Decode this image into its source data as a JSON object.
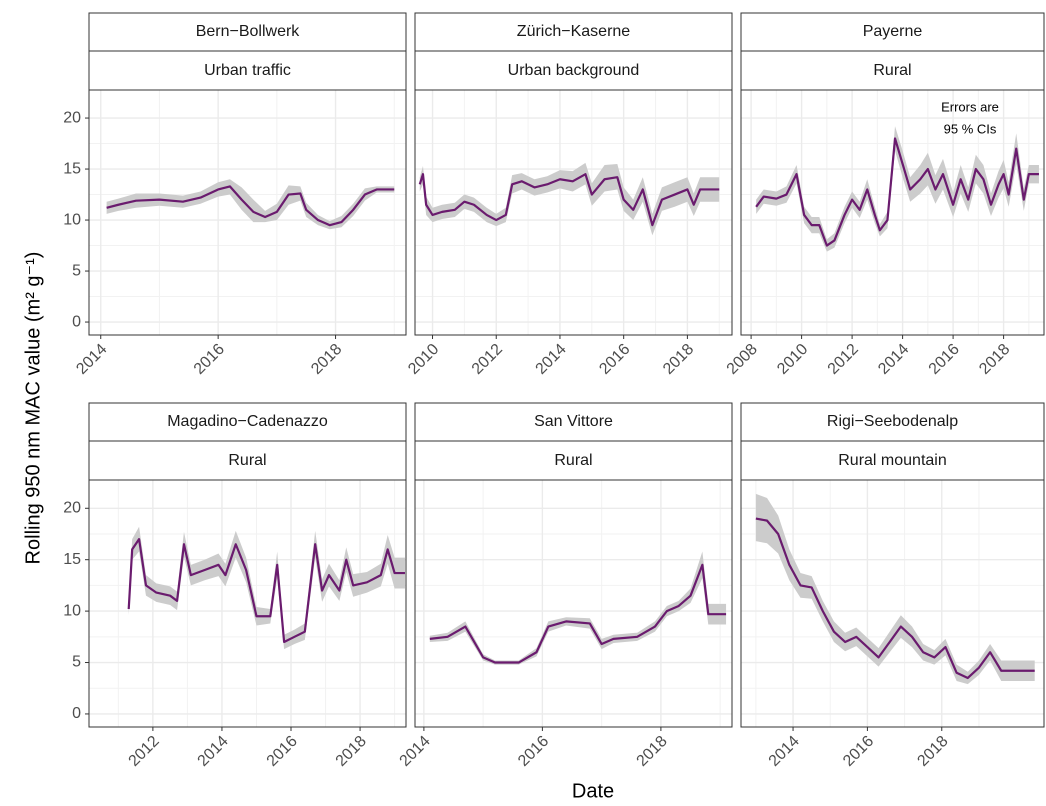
{
  "axis_titles": {
    "x": "Date",
    "y": "Rolling 950 nm MAC value (m² g⁻¹)"
  },
  "chart_data": [
    {
      "type": "line",
      "title": "Bern−Bollwerk",
      "subtitle": "Urban traffic",
      "color": "#6a1b6e",
      "ribbon_color": "#cccccc",
      "grid": true,
      "xlim": [
        2013.8,
        2019.2
      ],
      "xticks": [
        2014,
        2016,
        2018
      ],
      "xminor": [
        2015,
        2017,
        2019
      ],
      "ylim": [
        -1.27,
        22.75
      ],
      "yticks": [
        0,
        5,
        10,
        15,
        20
      ],
      "yminor": [
        2.5,
        7.5,
        12.5,
        17.5
      ],
      "x": [
        2014.1,
        2014.3,
        2014.6,
        2015.0,
        2015.4,
        2015.7,
        2016.0,
        2016.2,
        2016.4,
        2016.6,
        2016.8,
        2017.0,
        2017.2,
        2017.4,
        2017.5,
        2017.7,
        2017.9,
        2018.1,
        2018.3,
        2018.5,
        2018.7,
        2019.0
      ],
      "values": [
        11.2,
        11.5,
        11.9,
        12.0,
        11.8,
        12.2,
        13.0,
        13.3,
        12.0,
        10.8,
        10.3,
        10.8,
        12.5,
        12.6,
        11.0,
        10.0,
        9.5,
        9.8,
        11.0,
        12.5,
        13.0,
        13.0
      ],
      "lower": [
        10.6,
        10.9,
        11.2,
        11.4,
        11.2,
        11.6,
        12.3,
        12.5,
        11.0,
        9.8,
        9.8,
        10.0,
        11.5,
        11.9,
        10.3,
        9.5,
        9.1,
        9.3,
        10.4,
        11.9,
        12.7,
        12.7
      ],
      "upper": [
        11.8,
        12.1,
        12.6,
        12.6,
        12.4,
        12.8,
        13.7,
        14.0,
        13.2,
        12.0,
        10.9,
        11.6,
        13.4,
        13.3,
        11.7,
        10.5,
        9.9,
        10.4,
        11.6,
        13.1,
        13.3,
        13.3
      ]
    },
    {
      "type": "line",
      "title": "Zürich−Kaserne",
      "subtitle": "Urban background",
      "color": "#6a1b6e",
      "ribbon_color": "#cccccc",
      "grid": true,
      "xlim": [
        2009.45,
        2019.4
      ],
      "xticks": [
        2010,
        2012,
        2014,
        2016,
        2018
      ],
      "xminor": [
        2011,
        2013,
        2015,
        2017,
        2019
      ],
      "ylim": [
        -1.27,
        22.75
      ],
      "yticks": [
        0,
        5,
        10,
        15,
        20
      ],
      "yminor": [
        2.5,
        7.5,
        12.5,
        17.5
      ],
      "x": [
        2009.6,
        2009.7,
        2009.8,
        2010.0,
        2010.3,
        2010.7,
        2011.0,
        2011.3,
        2011.7,
        2012.0,
        2012.3,
        2012.5,
        2012.8,
        2013.2,
        2013.6,
        2014.0,
        2014.4,
        2014.8,
        2015.0,
        2015.4,
        2015.8,
        2016.0,
        2016.3,
        2016.6,
        2016.9,
        2017.2,
        2017.6,
        2018.0,
        2018.2,
        2018.4,
        2019.0
      ],
      "values": [
        13.5,
        14.5,
        11.5,
        10.5,
        10.8,
        11.0,
        11.8,
        11.5,
        10.5,
        10.0,
        10.5,
        13.5,
        13.8,
        13.2,
        13.5,
        14.0,
        13.8,
        14.5,
        12.5,
        14.0,
        14.2,
        12.0,
        11.0,
        13.0,
        9.5,
        12.0,
        12.5,
        13.0,
        11.5,
        13.0,
        13.0
      ],
      "lower": [
        12.8,
        13.5,
        10.5,
        9.8,
        10.1,
        10.3,
        11.1,
        10.8,
        9.8,
        9.4,
        9.8,
        12.6,
        13.0,
        12.4,
        12.7,
        13.1,
        12.8,
        13.5,
        11.4,
        12.8,
        13.0,
        10.9,
        10.0,
        11.8,
        8.5,
        10.9,
        11.3,
        11.8,
        10.4,
        11.8,
        11.8
      ],
      "upper": [
        14.2,
        15.3,
        12.3,
        11.2,
        11.5,
        11.7,
        12.5,
        12.2,
        11.2,
        10.6,
        11.2,
        14.4,
        14.6,
        14.0,
        14.3,
        14.9,
        14.8,
        15.6,
        13.6,
        15.4,
        15.5,
        13.2,
        12.0,
        14.2,
        10.6,
        13.2,
        13.7,
        14.2,
        12.6,
        14.2,
        14.2
      ]
    },
    {
      "type": "line",
      "title": "Payerne",
      "subtitle": "Rural",
      "color": "#6a1b6e",
      "ribbon_color": "#cccccc",
      "grid": true,
      "annotation": [
        "Errors are",
        "95 % CIs"
      ],
      "xlim": [
        2007.6,
        2019.6
      ],
      "xticks": [
        2008,
        2010,
        2012,
        2014,
        2016,
        2018
      ],
      "xminor": [
        2009,
        2011,
        2013,
        2015,
        2017,
        2019
      ],
      "ylim": [
        -1.27,
        22.75
      ],
      "yticks": [
        0,
        5,
        10,
        15,
        20
      ],
      "yminor": [
        2.5,
        7.5,
        12.5,
        17.5
      ],
      "x": [
        2008.2,
        2008.5,
        2009.0,
        2009.4,
        2009.8,
        2010.1,
        2010.4,
        2010.7,
        2011.0,
        2011.3,
        2011.7,
        2012.0,
        2012.3,
        2012.6,
        2012.9,
        2013.1,
        2013.4,
        2013.7,
        2014.0,
        2014.3,
        2014.7,
        2015.0,
        2015.3,
        2015.6,
        2016.0,
        2016.3,
        2016.6,
        2016.9,
        2017.2,
        2017.5,
        2017.8,
        2018.0,
        2018.2,
        2018.5,
        2018.8,
        2019.0,
        2019.4
      ],
      "values": [
        11.3,
        12.3,
        12.1,
        12.5,
        14.5,
        10.5,
        9.5,
        9.5,
        7.5,
        8.0,
        10.5,
        12.0,
        11.0,
        13.0,
        10.5,
        9.0,
        10.0,
        18.0,
        15.5,
        13.0,
        14.0,
        15.0,
        13.0,
        14.5,
        11.5,
        14.0,
        12.0,
        15.0,
        14.0,
        11.5,
        13.5,
        14.5,
        12.5,
        17.0,
        12.0,
        14.5,
        14.5
      ],
      "lower": [
        10.6,
        11.6,
        11.4,
        11.7,
        13.6,
        9.7,
        8.7,
        8.7,
        6.9,
        7.3,
        9.7,
        11.2,
        10.2,
        12.0,
        9.7,
        8.4,
        9.2,
        16.8,
        14.2,
        11.8,
        12.6,
        13.4,
        11.6,
        13.0,
        10.3,
        12.6,
        10.8,
        13.6,
        12.6,
        10.4,
        12.2,
        13.1,
        11.3,
        15.5,
        10.9,
        13.6,
        13.6
      ],
      "upper": [
        12.0,
        13.0,
        12.8,
        13.3,
        15.4,
        11.3,
        10.3,
        10.3,
        8.1,
        8.7,
        11.3,
        12.8,
        11.8,
        14.0,
        11.3,
        9.6,
        10.8,
        19.2,
        16.8,
        14.2,
        15.4,
        16.6,
        14.4,
        16.0,
        12.7,
        15.4,
        13.2,
        16.4,
        15.4,
        12.6,
        14.8,
        15.9,
        13.7,
        18.5,
        13.1,
        15.4,
        15.4
      ]
    },
    {
      "type": "line",
      "title": "Magadino−Cadenazzo",
      "subtitle": "Rural",
      "color": "#6a1b6e",
      "ribbon_color": "#cccccc",
      "grid": true,
      "xlim": [
        2010.15,
        2019.33
      ],
      "xticks": [
        2012,
        2014,
        2016,
        2018
      ],
      "xminor": [
        2011,
        2013,
        2015,
        2017,
        2019
      ],
      "ylim": [
        -1.27,
        22.75
      ],
      "yticks": [
        0,
        5,
        10,
        15,
        20
      ],
      "yminor": [
        2.5,
        7.5,
        12.5,
        17.5
      ],
      "x": [
        2011.3,
        2011.4,
        2011.6,
        2011.8,
        2012.1,
        2012.5,
        2012.7,
        2012.9,
        2013.1,
        2013.5,
        2013.9,
        2014.1,
        2014.4,
        2014.7,
        2015.0,
        2015.4,
        2015.6,
        2015.8,
        2016.1,
        2016.4,
        2016.7,
        2016.9,
        2017.1,
        2017.4,
        2017.6,
        2017.8,
        2018.2,
        2018.6,
        2018.8,
        2019.0,
        2019.3
      ],
      "values": [
        10.2,
        16.0,
        17.0,
        12.5,
        11.8,
        11.5,
        11.0,
        16.5,
        13.5,
        14.0,
        14.5,
        13.5,
        16.5,
        14.0,
        9.5,
        9.5,
        14.5,
        7.0,
        7.5,
        8.0,
        16.5,
        12.0,
        13.5,
        12.0,
        15.0,
        12.5,
        12.8,
        13.5,
        16.0,
        13.7,
        13.7
      ],
      "lower": [
        9.6,
        15.0,
        15.8,
        11.5,
        10.9,
        10.6,
        10.1,
        15.3,
        12.5,
        13.0,
        13.4,
        12.4,
        15.2,
        12.8,
        8.6,
        8.8,
        13.2,
        6.3,
        6.8,
        7.2,
        15.2,
        10.9,
        12.4,
        11.0,
        13.8,
        11.4,
        11.8,
        12.4,
        14.6,
        12.2,
        12.2
      ],
      "upper": [
        10.8,
        17.0,
        18.2,
        13.5,
        12.7,
        12.4,
        11.9,
        17.7,
        14.5,
        15.0,
        15.6,
        14.6,
        17.8,
        15.2,
        10.4,
        10.2,
        15.8,
        7.7,
        8.2,
        8.8,
        17.8,
        13.1,
        14.6,
        13.0,
        16.2,
        13.6,
        13.8,
        14.6,
        17.4,
        15.2,
        15.2
      ]
    },
    {
      "type": "line",
      "title": "San Vittore",
      "subtitle": "Rural",
      "color": "#6a1b6e",
      "ribbon_color": "#cccccc",
      "grid": true,
      "xlim": [
        2013.85,
        2019.2
      ],
      "xticks": [
        2014,
        2016,
        2018
      ],
      "xminor": [
        2015,
        2017,
        2019
      ],
      "ylim": [
        -1.27,
        22.75
      ],
      "yticks": [
        0,
        5,
        10,
        15,
        20
      ],
      "yminor": [
        2.5,
        7.5,
        12.5,
        17.5
      ],
      "x": [
        2014.1,
        2014.4,
        2014.7,
        2015.0,
        2015.2,
        2015.6,
        2015.9,
        2016.1,
        2016.4,
        2016.8,
        2017.0,
        2017.2,
        2017.6,
        2017.9,
        2018.1,
        2018.3,
        2018.5,
        2018.7,
        2018.8,
        2019.1
      ],
      "values": [
        7.3,
        7.5,
        8.5,
        5.5,
        5.0,
        5.0,
        6.0,
        8.5,
        9.0,
        8.8,
        6.8,
        7.3,
        7.5,
        8.5,
        10.0,
        10.5,
        11.5,
        14.5,
        9.7,
        9.7
      ],
      "lower": [
        7.0,
        7.1,
        8.0,
        5.2,
        4.8,
        4.8,
        5.6,
        8.0,
        8.6,
        8.3,
        6.3,
        6.9,
        7.1,
        8.0,
        9.5,
        10.0,
        10.8,
        13.2,
        8.7,
        8.7
      ],
      "upper": [
        7.6,
        7.9,
        9.0,
        5.8,
        5.2,
        5.2,
        6.4,
        9.0,
        9.4,
        9.3,
        7.3,
        7.7,
        7.9,
        9.0,
        10.5,
        11.0,
        12.2,
        15.8,
        10.7,
        10.7
      ]
    },
    {
      "type": "line",
      "title": "Rigi−Seebodenalp",
      "subtitle": "Rural mountain",
      "color": "#6a1b6e",
      "ribbon_color": "#cccccc",
      "grid": true,
      "xlim": [
        2012.6,
        2020.75
      ],
      "xticks": [
        2014,
        2016,
        2018
      ],
      "xminor": [
        2013,
        2015,
        2017,
        2019
      ],
      "ylim": [
        -1.27,
        22.75
      ],
      "yticks": [
        0,
        5,
        10,
        15,
        20
      ],
      "yminor": [
        2.5,
        7.5,
        12.5,
        17.5
      ],
      "x": [
        2013.0,
        2013.3,
        2013.6,
        2013.9,
        2014.2,
        2014.5,
        2014.8,
        2015.1,
        2015.4,
        2015.7,
        2016.0,
        2016.3,
        2016.6,
        2016.9,
        2017.2,
        2017.5,
        2017.8,
        2018.1,
        2018.4,
        2018.7,
        2019.0,
        2019.3,
        2019.6,
        2020.5
      ],
      "values": [
        19.0,
        18.8,
        17.5,
        14.5,
        12.5,
        12.3,
        10.0,
        8.0,
        7.0,
        7.5,
        6.5,
        5.5,
        7.0,
        8.5,
        7.5,
        6.0,
        5.5,
        6.5,
        4.0,
        3.5,
        4.5,
        6.0,
        4.2,
        4.2
      ],
      "lower": [
        16.8,
        16.6,
        15.6,
        13.0,
        11.3,
        11.2,
        9.0,
        7.0,
        6.1,
        6.6,
        5.6,
        4.6,
        6.0,
        7.4,
        6.5,
        5.2,
        4.8,
        5.7,
        3.2,
        2.9,
        3.8,
        5.2,
        3.2,
        3.2
      ],
      "upper": [
        21.4,
        21.0,
        19.3,
        16.0,
        13.7,
        13.4,
        11.0,
        9.0,
        7.9,
        8.4,
        7.4,
        6.4,
        8.0,
        9.6,
        8.5,
        6.8,
        6.2,
        7.3,
        4.8,
        4.1,
        5.2,
        6.8,
        5.2,
        5.2
      ]
    }
  ]
}
